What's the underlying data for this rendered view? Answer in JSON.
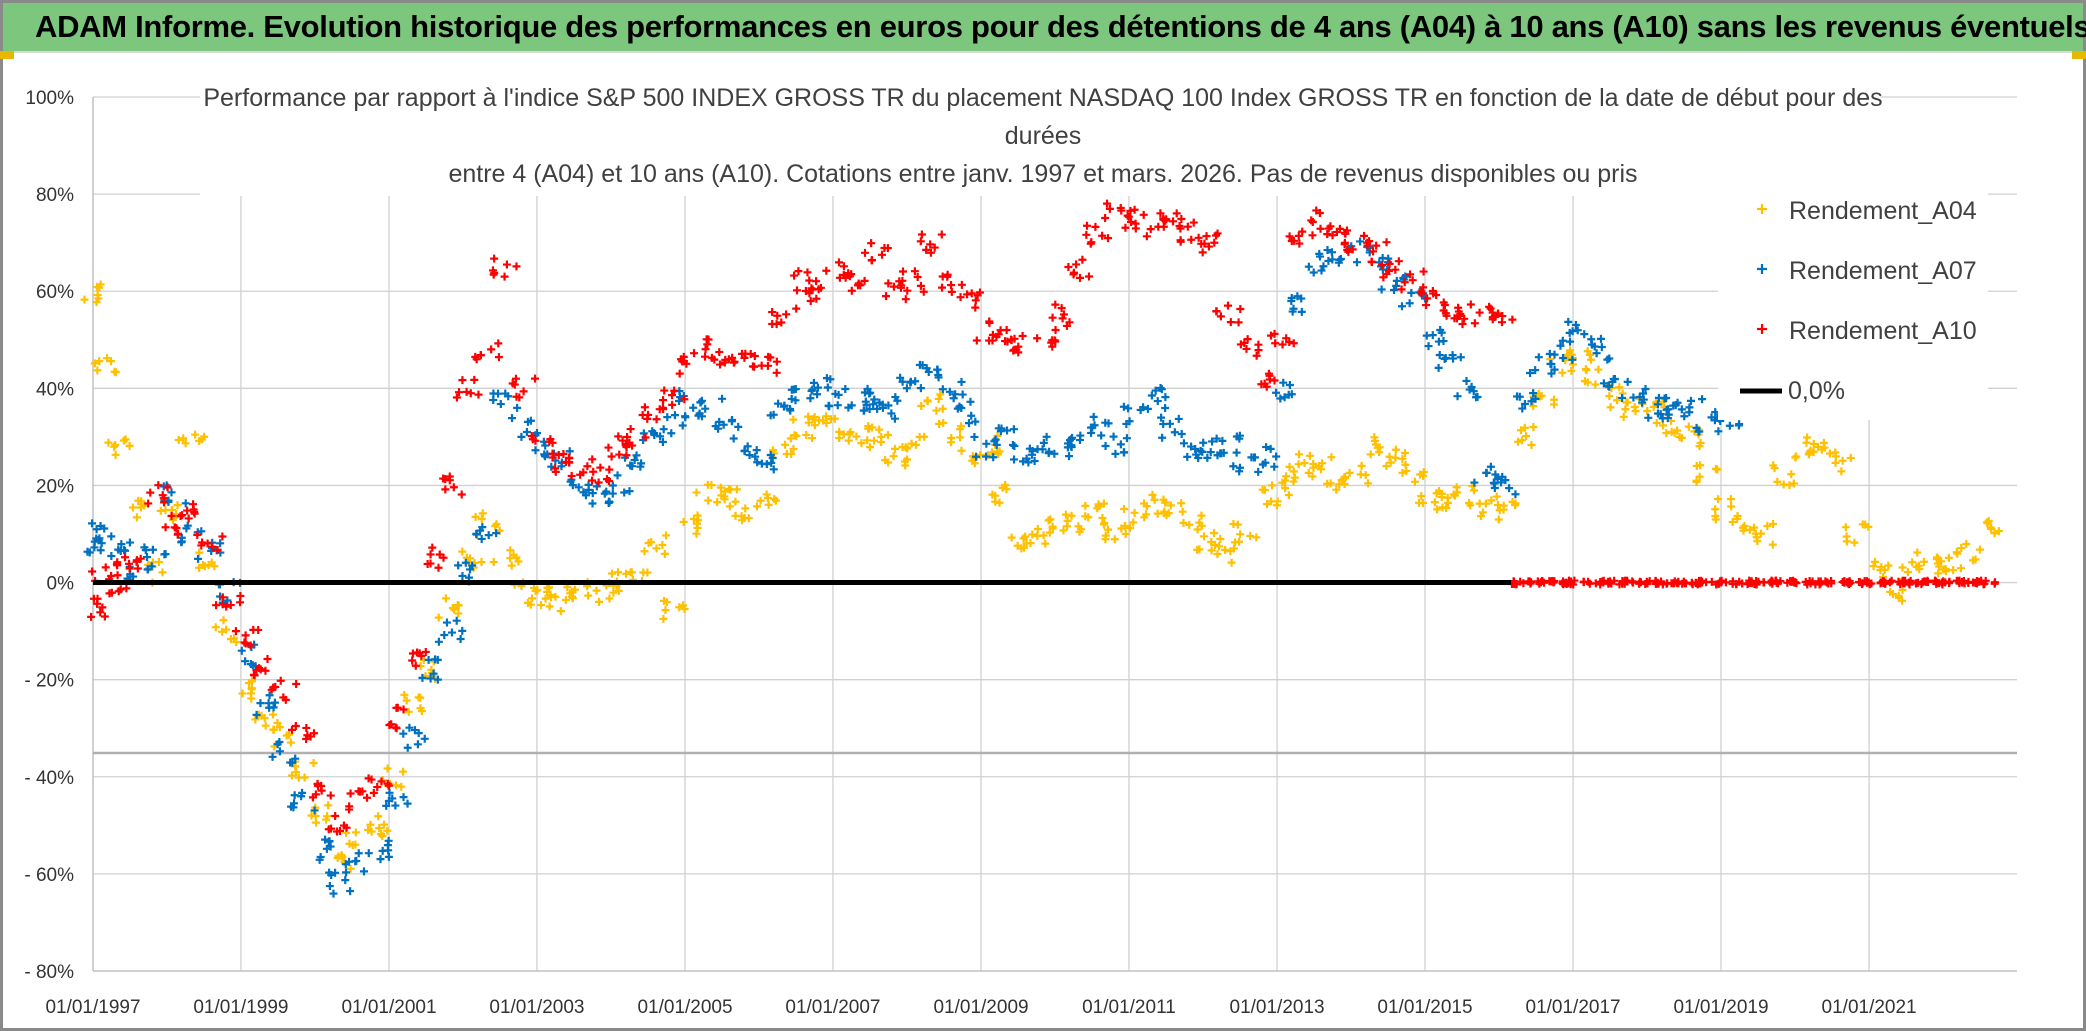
{
  "header": {
    "title": "ADAM Informe. Evolution historique des performances en euros pour des détentions de 4 ans (A04) à 10 ans (A10) sans les revenus éventuels"
  },
  "chart_data": {
    "type": "scatter",
    "title_lines": [
      "Performance par rapport à l'indice S&P 500 INDEX GROSS TR  du placement NASDAQ 100 Index GROSS TR en fonction de la date de début pour des",
      "durées",
      "entre 4 (A04) et 10 ans (A10). Cotations entre janv. 1997 et mars. 2026. Pas de revenus disponibles ou pris"
    ],
    "xlabel": "",
    "ylabel": "",
    "x_ticks": [
      "01/01/1997",
      "01/01/1999",
      "01/01/2001",
      "01/01/2003",
      "01/01/2005",
      "01/01/2007",
      "01/01/2009",
      "01/01/2011",
      "01/01/2013",
      "01/01/2015",
      "01/01/2017",
      "01/01/2019",
      "01/01/2021"
    ],
    "xlim": [
      "1997-01-01",
      "2023-01-01"
    ],
    "ylim": [
      -80,
      100
    ],
    "y_ticks": [
      {
        "value": 100,
        "label": "100%"
      },
      {
        "value": 80,
        "label": "80%"
      },
      {
        "value": 60,
        "label": "60%"
      },
      {
        "value": 40,
        "label": "40%"
      },
      {
        "value": 20,
        "label": "20%"
      },
      {
        "value": 0,
        "label": "0%"
      },
      {
        "value": -20,
        "label": "- 20%"
      },
      {
        "value": -40,
        "label": "- 40%"
      },
      {
        "value": -60,
        "label": "- 60%"
      },
      {
        "value": -80,
        "label": "- 80%"
      }
    ],
    "grid": true,
    "legend_position": "right",
    "series": [
      {
        "name": "Rendement_A04",
        "color": "#ffc000",
        "marker": "plus",
        "x": [
          "1997-01-01",
          "1997-03-01",
          "1997-05-01",
          "1997-08-01",
          "1997-11-01",
          "1998-02-01",
          "1998-05-01",
          "1998-08-01",
          "1998-11-01",
          "1999-02-01",
          "1999-05-01",
          "1999-08-01",
          "1999-11-01",
          "2000-02-01",
          "2000-05-01",
          "2000-08-01",
          "2000-11-01",
          "2001-02-01",
          "2001-05-01",
          "2001-08-01",
          "2001-11-01",
          "2002-02-01",
          "2002-05-01",
          "2002-08-01",
          "2002-11-01",
          "2003-02-01",
          "2003-05-01",
          "2003-08-01",
          "2003-11-01",
          "2004-02-01",
          "2004-05-01",
          "2004-08-01",
          "2004-11-01",
          "2005-02-01",
          "2005-05-01",
          "2005-08-01",
          "2005-11-01",
          "2006-02-01",
          "2006-05-01",
          "2006-08-01",
          "2006-11-01",
          "2007-02-01",
          "2007-05-01",
          "2007-08-01",
          "2007-11-01",
          "2008-02-01",
          "2008-05-01",
          "2008-08-01",
          "2008-11-01",
          "2009-02-01",
          "2009-05-01",
          "2009-08-01",
          "2009-11-01",
          "2010-02-01",
          "2010-05-01",
          "2010-08-01",
          "2010-11-01",
          "2011-02-01",
          "2011-05-01",
          "2011-08-01",
          "2011-11-01",
          "2012-02-01",
          "2012-05-01",
          "2012-08-01",
          "2012-11-01",
          "2013-02-01",
          "2013-05-01",
          "2013-08-01",
          "2013-11-01",
          "2014-02-01",
          "2014-05-01",
          "2014-08-01",
          "2014-11-01",
          "2015-02-01",
          "2015-05-01",
          "2015-08-01",
          "2015-11-01",
          "2016-02-01",
          "2016-05-01",
          "2016-08-01",
          "2016-11-01",
          "2017-02-01",
          "2017-05-01",
          "2017-08-01",
          "2017-11-01",
          "2018-02-01",
          "2018-05-01",
          "2018-08-01",
          "2018-11-01",
          "2019-02-01",
          "2019-05-01",
          "2019-08-01",
          "2019-11-01",
          "2020-02-01",
          "2020-05-01",
          "2020-08-01",
          "2020-11-01",
          "2021-02-01",
          "2021-05-01",
          "2021-08-01",
          "2021-11-01",
          "2022-02-01",
          "2022-05-01",
          "2022-08-01"
        ],
        "y": [
          60,
          45,
          28,
          15,
          2,
          15,
          30,
          5,
          -10,
          -22,
          -28,
          -32,
          -38,
          -48,
          -57,
          -52,
          -50,
          -40,
          -25,
          -18,
          -5,
          5,
          12,
          5,
          -2,
          -3,
          -4,
          -2,
          -2,
          0,
          2,
          8,
          -6,
          12,
          18,
          17,
          15,
          16,
          28,
          32,
          33,
          32,
          30,
          31,
          26,
          28,
          37,
          31,
          25,
          28,
          18,
          8,
          10,
          12,
          12,
          14,
          10,
          13,
          16,
          15,
          13,
          8,
          6,
          10,
          18,
          20,
          25,
          24,
          21,
          22,
          28,
          26,
          22,
          18,
          17,
          18,
          15,
          16,
          30,
          38,
          45,
          47,
          42,
          38,
          36,
          35,
          32,
          30,
          22,
          15,
          11,
          10,
          22,
          28,
          27,
          25,
          10,
          2,
          -2,
          4,
          3,
          4,
          6,
          12
        ]
      },
      {
        "name": "Rendement_A07",
        "color": "#0070c0",
        "marker": "plus",
        "x": [
          "1997-01-01",
          "1997-03-01",
          "1997-05-01",
          "1997-08-01",
          "1997-11-01",
          "1998-02-01",
          "1998-05-01",
          "1998-08-01",
          "1998-11-01",
          "1999-02-01",
          "1999-05-01",
          "1999-08-01",
          "1999-11-01",
          "2000-02-01",
          "2000-05-01",
          "2000-08-01",
          "2000-11-01",
          "2001-02-01",
          "2001-05-01",
          "2001-08-01",
          "2001-11-01",
          "2002-02-01",
          "2002-05-01",
          "2002-08-01",
          "2002-11-01",
          "2003-02-01",
          "2003-05-01",
          "2003-08-01",
          "2003-11-01",
          "2004-02-01",
          "2004-05-01",
          "2004-08-01",
          "2004-11-01",
          "2005-02-01",
          "2005-05-01",
          "2005-08-01",
          "2005-11-01",
          "2006-02-01",
          "2006-05-01",
          "2006-08-01",
          "2006-11-01",
          "2007-02-01",
          "2007-05-01",
          "2007-08-01",
          "2007-11-01",
          "2008-02-01",
          "2008-05-01",
          "2008-08-01",
          "2008-11-01",
          "2009-02-01",
          "2009-05-01",
          "2009-08-01",
          "2009-11-01",
          "2010-02-01",
          "2010-05-01",
          "2010-08-01",
          "2010-11-01",
          "2011-02-01",
          "2011-05-01",
          "2011-08-01",
          "2011-11-01",
          "2012-02-01",
          "2012-05-01",
          "2012-08-01",
          "2012-11-01",
          "2013-02-01",
          "2013-05-01",
          "2013-08-01",
          "2013-11-01",
          "2014-02-01",
          "2014-05-01",
          "2014-08-01",
          "2014-11-01",
          "2015-02-01",
          "2015-05-01",
          "2015-08-01",
          "2015-11-01",
          "2016-02-01",
          "2016-05-01",
          "2016-08-01",
          "2016-11-01",
          "2017-02-01",
          "2017-05-01",
          "2017-08-01",
          "2017-11-01",
          "2018-02-01",
          "2018-05-01",
          "2018-08-01",
          "2018-11-01",
          "2019-02-01"
        ],
        "y": [
          8,
          10,
          6,
          2,
          5,
          18,
          10,
          6,
          -2,
          -15,
          -25,
          -35,
          -45,
          -55,
          -62,
          -58,
          -55,
          -45,
          -32,
          -18,
          -10,
          2,
          10,
          38,
          32,
          28,
          25,
          20,
          18,
          20,
          24,
          30,
          33,
          38,
          36,
          33,
          28,
          25,
          35,
          38,
          40,
          38,
          37,
          38,
          36,
          42,
          45,
          40,
          35,
          28,
          30,
          27,
          28,
          28,
          30,
          32,
          28,
          34,
          38,
          32,
          28,
          27,
          28,
          25,
          26,
          40,
          58,
          66,
          68,
          68,
          66,
          62,
          58,
          50,
          45,
          40,
          22,
          20,
          38,
          45,
          48,
          52,
          48,
          42,
          38,
          36,
          35,
          36,
          33,
          34
        ]
      },
      {
        "name": "Rendement_A10",
        "color": "#ff0000",
        "marker": "plus",
        "x": [
          "1997-01-01",
          "1997-03-01",
          "1997-05-01",
          "1997-08-01",
          "1997-11-01",
          "1998-02-01",
          "1998-05-01",
          "1998-08-01",
          "1998-11-01",
          "1999-02-01",
          "1999-05-01",
          "1999-08-01",
          "1999-11-01",
          "2000-02-01",
          "2000-05-01",
          "2000-08-01",
          "2000-11-01",
          "2001-02-01",
          "2001-05-01",
          "2001-08-01",
          "2001-11-01",
          "2002-02-01",
          "2002-05-01",
          "2002-08-01",
          "2002-11-01",
          "2003-02-01",
          "2003-05-01",
          "2003-08-01",
          "2003-11-01",
          "2004-02-01",
          "2004-05-01",
          "2004-08-01",
          "2004-11-01",
          "2005-02-01",
          "2005-05-01",
          "2005-08-01",
          "2005-11-01",
          "2006-02-01",
          "2006-05-01",
          "2006-08-01",
          "2006-11-01",
          "2007-02-01",
          "2007-05-01",
          "2007-08-01",
          "2007-11-01",
          "2008-02-01",
          "2008-05-01",
          "2008-08-01",
          "2008-11-01",
          "2009-02-01",
          "2009-05-01",
          "2009-08-01",
          "2009-11-01",
          "2010-02-01",
          "2010-05-01",
          "2010-08-01",
          "2010-11-01",
          "2011-02-01",
          "2011-05-01",
          "2011-08-01",
          "2011-11-01",
          "2012-02-01",
          "2012-05-01",
          "2012-08-01",
          "2012-11-01",
          "2013-02-01",
          "2013-05-01",
          "2013-08-01",
          "2013-11-01",
          "2014-02-01",
          "2014-05-01",
          "2014-08-01",
          "2014-11-01",
          "2015-02-01",
          "2015-05-01",
          "2015-08-01",
          "2015-11-01",
          "2016-02-01",
          "2016-05-01",
          "2016-08-01",
          "2016-11-01",
          "2017-02-01",
          "2017-05-01",
          "2017-08-01",
          "2017-11-01",
          "2018-02-01",
          "2018-05-01",
          "2018-08-01",
          "2018-11-01",
          "2019-02-01",
          "2019-05-01",
          "2019-08-01",
          "2019-11-01",
          "2020-02-01",
          "2020-05-01",
          "2020-08-01",
          "2020-11-01",
          "2021-02-01",
          "2021-05-01",
          "2021-08-01",
          "2021-11-01",
          "2022-02-01",
          "2022-05-01",
          "2022-08-01"
        ],
        "y": [
          -5,
          2,
          0,
          5,
          18,
          12,
          15,
          8,
          -5,
          -12,
          -18,
          -22,
          -30,
          -42,
          -50,
          -45,
          -42,
          -28,
          -15,
          5,
          20,
          40,
          48,
          65,
          40,
          28,
          25,
          24,
          22,
          28,
          30,
          35,
          38,
          45,
          48,
          47,
          46,
          45,
          55,
          62,
          60,
          65,
          62,
          68,
          60,
          62,
          70,
          62,
          58,
          52,
          50,
          49,
          50,
          55,
          65,
          72,
          76,
          75,
          73,
          74,
          72,
          70,
          55,
          48,
          42,
          50,
          72,
          75,
          72,
          70,
          68,
          65,
          62,
          58,
          56,
          55,
          55,
          55,
          0,
          0,
          0,
          0,
          0,
          0,
          0,
          0,
          0,
          0,
          0,
          0,
          0,
          0,
          0,
          0,
          0,
          0,
          0,
          0,
          0,
          0,
          0,
          0,
          0,
          0
        ]
      },
      {
        "name": "0,0%",
        "color": "#000000",
        "marker": "line",
        "x": [
          "1997-01-01",
          "2016-03-01"
        ],
        "y": [
          0,
          0
        ]
      }
    ]
  }
}
